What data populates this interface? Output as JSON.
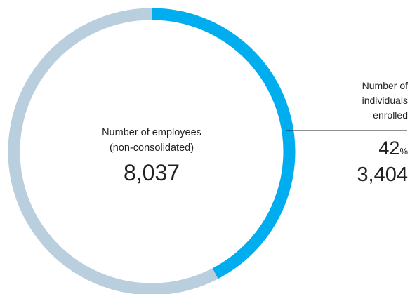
{
  "chart_data": {
    "type": "pie",
    "total_label": "Number of employees\n(non-consolidated)",
    "total": "8,037",
    "slices": [
      {
        "label": "Number of individuals enrolled",
        "value": 3404,
        "percent": 42,
        "color": "#00aeef"
      },
      {
        "label": "",
        "value": 4633,
        "percent": 58,
        "color": "#b9cfdd"
      }
    ],
    "callout": {
      "label": "Number of\nindividuals\nenrolled",
      "percent": "42",
      "percent_unit": "%",
      "count": "3,404"
    }
  }
}
